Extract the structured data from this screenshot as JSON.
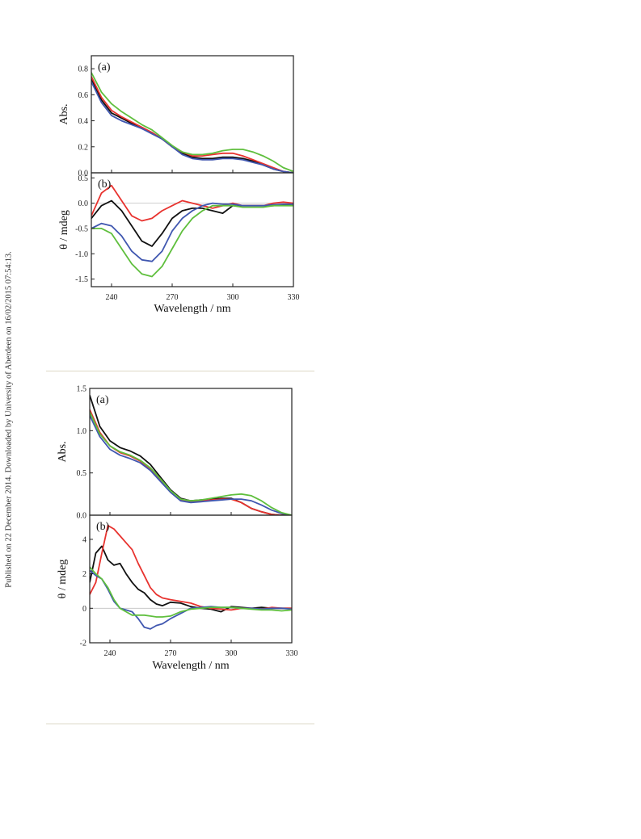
{
  "side_note": "Published on 22 December 2014. Downloaded by University of Aberdeen on 16/02/2015 07:54:13.",
  "colors": {
    "black": "#111111",
    "red": "#e8332f",
    "blue": "#4057b0",
    "green": "#5fbf3d",
    "axis": "#222222",
    "zero_line": "#c0c0c0"
  },
  "chart_data": [
    {
      "figure": 1,
      "type": "line",
      "xlabel": "Wavelength / nm",
      "xlim": [
        230,
        330
      ],
      "x_ticks": [
        240,
        270,
        300,
        330
      ],
      "panels": [
        {
          "label": "(a)",
          "ylabel": "Abs.",
          "ylim": [
            0,
            0.9
          ],
          "y_ticks": [
            0.0,
            0.2,
            0.4,
            0.6,
            0.8
          ],
          "y_tick_labels": [
            "0.0",
            "0.2",
            "0.4",
            "0.6",
            "0.8"
          ],
          "x": [
            230,
            235,
            240,
            245,
            250,
            255,
            260,
            265,
            270,
            275,
            280,
            285,
            290,
            295,
            300,
            305,
            310,
            315,
            320,
            325,
            330
          ],
          "series": [
            {
              "color": "black",
              "values": [
                0.72,
                0.56,
                0.46,
                0.42,
                0.38,
                0.34,
                0.31,
                0.26,
                0.2,
                0.15,
                0.12,
                0.11,
                0.11,
                0.12,
                0.12,
                0.11,
                0.09,
                0.06,
                0.03,
                0.01,
                0.0
              ]
            },
            {
              "color": "red",
              "values": [
                0.74,
                0.58,
                0.48,
                0.43,
                0.39,
                0.35,
                0.31,
                0.26,
                0.2,
                0.16,
                0.13,
                0.13,
                0.14,
                0.15,
                0.15,
                0.13,
                0.1,
                0.07,
                0.04,
                0.01,
                0.0
              ]
            },
            {
              "color": "blue",
              "values": [
                0.7,
                0.54,
                0.44,
                0.4,
                0.37,
                0.34,
                0.3,
                0.26,
                0.2,
                0.14,
                0.11,
                0.1,
                0.1,
                0.11,
                0.11,
                0.1,
                0.08,
                0.06,
                0.03,
                0.01,
                0.0
              ]
            },
            {
              "color": "green",
              "values": [
                0.77,
                0.62,
                0.53,
                0.47,
                0.42,
                0.37,
                0.33,
                0.27,
                0.21,
                0.16,
                0.14,
                0.14,
                0.15,
                0.17,
                0.18,
                0.18,
                0.16,
                0.13,
                0.09,
                0.04,
                0.01
              ]
            }
          ]
        },
        {
          "label": "(b)",
          "ylabel": "θ / mdeg",
          "ylim": [
            -1.65,
            0.6
          ],
          "y_ticks": [
            -1.5,
            -1.0,
            -0.5,
            0.0,
            0.5
          ],
          "y_tick_labels": [
            "-1.5",
            "-1.0",
            "-0.5",
            "0.0",
            "0.5"
          ],
          "zero_line": true,
          "x": [
            230,
            235,
            240,
            245,
            250,
            255,
            260,
            265,
            270,
            275,
            280,
            285,
            290,
            295,
            300,
            305,
            310,
            315,
            320,
            325,
            330
          ],
          "series": [
            {
              "color": "black",
              "values": [
                -0.3,
                -0.05,
                0.05,
                -0.15,
                -0.45,
                -0.75,
                -0.85,
                -0.6,
                -0.3,
                -0.15,
                -0.1,
                -0.1,
                -0.15,
                -0.2,
                -0.05,
                -0.05,
                -0.05,
                -0.05,
                -0.05,
                -0.03,
                -0.02
              ]
            },
            {
              "color": "red",
              "values": [
                -0.25,
                0.2,
                0.35,
                0.05,
                -0.25,
                -0.35,
                -0.3,
                -0.15,
                -0.05,
                0.05,
                0.0,
                -0.05,
                -0.1,
                -0.05,
                0.0,
                -0.05,
                -0.05,
                -0.05,
                0.0,
                0.02,
                0.0
              ]
            },
            {
              "color": "blue",
              "values": [
                -0.5,
                -0.4,
                -0.45,
                -0.65,
                -0.95,
                -1.12,
                -1.15,
                -0.95,
                -0.55,
                -0.3,
                -0.15,
                -0.05,
                0.0,
                -0.02,
                -0.02,
                -0.05,
                -0.05,
                -0.05,
                -0.03,
                -0.02,
                -0.02
              ]
            },
            {
              "color": "green",
              "values": [
                -0.5,
                -0.5,
                -0.6,
                -0.9,
                -1.2,
                -1.4,
                -1.45,
                -1.25,
                -0.9,
                -0.55,
                -0.3,
                -0.15,
                -0.05,
                -0.05,
                -0.05,
                -0.08,
                -0.08,
                -0.08,
                -0.05,
                -0.05,
                -0.05
              ]
            }
          ]
        }
      ]
    },
    {
      "figure": 2,
      "type": "line",
      "xlabel": "Wavelength / nm",
      "xlim": [
        230,
        330
      ],
      "x_ticks": [
        240,
        270,
        300,
        330
      ],
      "panels": [
        {
          "label": "(a)",
          "ylabel": "Abs.",
          "ylim": [
            0,
            1.5
          ],
          "y_ticks": [
            0.0,
            0.5,
            1.0,
            1.5
          ],
          "y_tick_labels": [
            "0.0",
            "0.5",
            "1.0",
            "1.5"
          ],
          "x": [
            230,
            235,
            240,
            245,
            250,
            255,
            260,
            265,
            270,
            275,
            280,
            285,
            290,
            295,
            300,
            305,
            310,
            315,
            320,
            325,
            330
          ],
          "series": [
            {
              "color": "black",
              "values": [
                1.42,
                1.05,
                0.88,
                0.8,
                0.76,
                0.7,
                0.6,
                0.45,
                0.3,
                0.2,
                0.17,
                0.18,
                0.19,
                0.2,
                0.2,
                0.15,
                0.08,
                0.04,
                0.01,
                0.0,
                0.0
              ]
            },
            {
              "color": "red",
              "values": [
                1.25,
                0.98,
                0.82,
                0.74,
                0.7,
                0.64,
                0.54,
                0.42,
                0.28,
                0.18,
                0.16,
                0.17,
                0.18,
                0.19,
                0.19,
                0.15,
                0.08,
                0.04,
                0.01,
                0.0,
                0.0
              ]
            },
            {
              "color": "blue",
              "values": [
                1.18,
                0.93,
                0.78,
                0.71,
                0.67,
                0.62,
                0.53,
                0.4,
                0.27,
                0.17,
                0.15,
                0.16,
                0.17,
                0.18,
                0.19,
                0.19,
                0.17,
                0.12,
                0.06,
                0.02,
                0.0
              ]
            },
            {
              "color": "green",
              "values": [
                1.22,
                0.96,
                0.82,
                0.75,
                0.71,
                0.65,
                0.56,
                0.43,
                0.29,
                0.19,
                0.17,
                0.18,
                0.2,
                0.22,
                0.24,
                0.25,
                0.23,
                0.17,
                0.09,
                0.03,
                0.0
              ]
            }
          ]
        },
        {
          "label": "(b)",
          "ylabel": "θ / mdeg",
          "ylim": [
            -2,
            5.4
          ],
          "y_ticks": [
            -2,
            0,
            2,
            4
          ],
          "y_tick_labels": [
            "-2",
            "0",
            "2",
            "4"
          ],
          "zero_line": true,
          "x": [
            230,
            233,
            236,
            239,
            242,
            245,
            248,
            251,
            254,
            257,
            260,
            263,
            266,
            270,
            275,
            280,
            285,
            290,
            295,
            300,
            305,
            310,
            315,
            320,
            325,
            330
          ],
          "series": [
            {
              "color": "black",
              "values": [
                1.5,
                3.2,
                3.6,
                2.8,
                2.5,
                2.6,
                2.0,
                1.5,
                1.1,
                0.9,
                0.5,
                0.25,
                0.15,
                0.35,
                0.3,
                0.1,
                0.0,
                -0.05,
                -0.2,
                0.1,
                0.05,
                0.0,
                0.05,
                0.0,
                0.0,
                0.0
              ]
            },
            {
              "color": "red",
              "values": [
                0.8,
                1.5,
                3.2,
                4.8,
                4.6,
                4.2,
                3.8,
                3.4,
                2.6,
                1.9,
                1.2,
                0.8,
                0.6,
                0.5,
                0.4,
                0.3,
                0.1,
                0.0,
                -0.05,
                -0.1,
                0.0,
                0.0,
                -0.05,
                0.05,
                0.0,
                0.0
              ]
            },
            {
              "color": "blue",
              "values": [
                2.2,
                1.9,
                1.7,
                1.1,
                0.4,
                0.0,
                -0.1,
                -0.2,
                -0.6,
                -1.1,
                -1.2,
                -1.0,
                -0.9,
                -0.6,
                -0.3,
                0.0,
                0.05,
                0.1,
                0.05,
                0.05,
                0.0,
                0.0,
                -0.05,
                0.0,
                0.0,
                -0.05
              ]
            },
            {
              "color": "green",
              "values": [
                2.4,
                2.0,
                1.7,
                1.2,
                0.5,
                0.0,
                -0.2,
                -0.4,
                -0.4,
                -0.4,
                -0.45,
                -0.5,
                -0.5,
                -0.45,
                -0.2,
                -0.05,
                0.0,
                0.05,
                0.05,
                0.05,
                0.0,
                -0.05,
                -0.1,
                -0.1,
                -0.15,
                -0.1
              ]
            }
          ]
        }
      ]
    }
  ]
}
